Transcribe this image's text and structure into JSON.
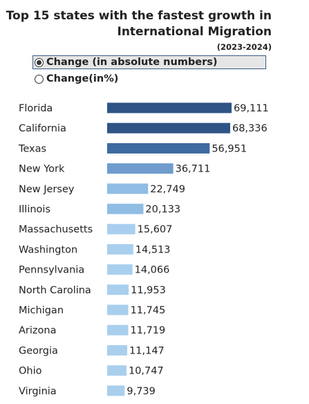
{
  "header": {
    "title_line1": "Top 15 states with the fastest growth in",
    "title_line2": "International Migration",
    "subtitle": "(2023-2024)"
  },
  "options": {
    "absolute_label": "Change (in absolute numbers)",
    "percent_label": "Change(in%)",
    "selected": "absolute"
  },
  "chart_data": {
    "type": "bar",
    "orientation": "horizontal",
    "title": "Top 15 states with the fastest growth in International Migration",
    "subtitle": "(2023-2024)",
    "categories": [
      "Florida",
      "California",
      "Texas",
      "New York",
      "New Jersey",
      "Illinois",
      "Massachusetts",
      "Washington",
      "Pennsylvania",
      "North Carolina",
      "Michigan",
      "Arizona",
      "Georgia",
      "Ohio",
      "Virginia"
    ],
    "values": [
      69111,
      68336,
      56951,
      36711,
      22749,
      20133,
      15607,
      14513,
      14066,
      11953,
      11745,
      11719,
      11147,
      10747,
      9739
    ],
    "value_labels": [
      "69,111",
      "68,336",
      "56,951",
      "36,711",
      "22,749",
      "20,133",
      "15,607",
      "14,513",
      "14,066",
      "11,953",
      "11,745",
      "11,719",
      "11,147",
      "10,747",
      "9,739"
    ],
    "colors": {
      "darkest": "#2f5486",
      "dark": "#3d6aa0",
      "medium": "#6f9ccd",
      "light": "#8fbde3",
      "lightest": "#a9cfee"
    },
    "xlim": [
      0,
      69111
    ],
    "grid": false,
    "legend": false
  }
}
